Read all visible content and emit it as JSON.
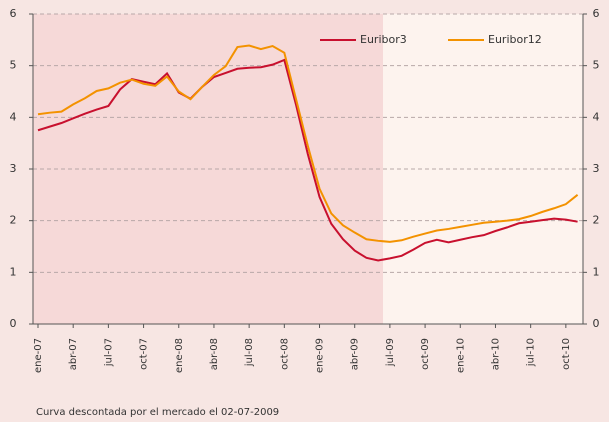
{
  "chart_data": {
    "type": "line",
    "categories": [
      "ene-07",
      null,
      null,
      "abr-07",
      null,
      null,
      "jul-07",
      null,
      null,
      "oct-07",
      null,
      null,
      "ene-08",
      null,
      null,
      "abr-08",
      null,
      null,
      "jul-08",
      null,
      null,
      "oct-08",
      null,
      null,
      "ene-09",
      null,
      null,
      "abr-09",
      null,
      null,
      "jul-09",
      null,
      null,
      "oct-09",
      null,
      null,
      "ene-10",
      null,
      null,
      "abr-10",
      null,
      null,
      "jul-10",
      null,
      null,
      "oct-10",
      null
    ],
    "series": [
      {
        "name": "Euribor3",
        "color": "#c8102e",
        "values": [
          3.75,
          3.82,
          3.89,
          3.98,
          4.07,
          4.15,
          4.22,
          4.54,
          4.74,
          4.69,
          4.64,
          4.85,
          4.48,
          4.36,
          4.59,
          4.78,
          4.86,
          4.94,
          4.96,
          4.97,
          5.02,
          5.11,
          4.24,
          3.29,
          2.46,
          1.94,
          1.64,
          1.42,
          1.28,
          1.23,
          1.27,
          1.32,
          1.44,
          1.57,
          1.63,
          1.58,
          1.63,
          1.68,
          1.72,
          1.8,
          1.87,
          1.95,
          1.98,
          2.01,
          2.04,
          2.02,
          1.98
        ]
      },
      {
        "name": "Euribor12",
        "color": "#f39200",
        "values": [
          4.06,
          4.09,
          4.11,
          4.25,
          4.37,
          4.51,
          4.56,
          4.67,
          4.73,
          4.65,
          4.61,
          4.79,
          4.5,
          4.35,
          4.59,
          4.82,
          4.99,
          5.36,
          5.39,
          5.32,
          5.38,
          5.25,
          4.35,
          3.45,
          2.62,
          2.14,
          1.91,
          1.77,
          1.64,
          1.61,
          1.59,
          1.62,
          1.69,
          1.75,
          1.81,
          1.84,
          1.88,
          1.92,
          1.96,
          1.98,
          2.0,
          2.03,
          2.09,
          2.17,
          2.24,
          2.32,
          2.5
        ]
      }
    ],
    "ylim": [
      0,
      6
    ],
    "yticks": [
      0,
      1,
      2,
      3,
      4,
      5,
      6
    ],
    "y2lim": [
      0,
      6
    ],
    "y2ticks": [
      0,
      1,
      2,
      3,
      4,
      5,
      6
    ],
    "grid": true,
    "legend": "upper right",
    "annotation": "Curva descontada por el mercado el 02-07-2009"
  }
}
